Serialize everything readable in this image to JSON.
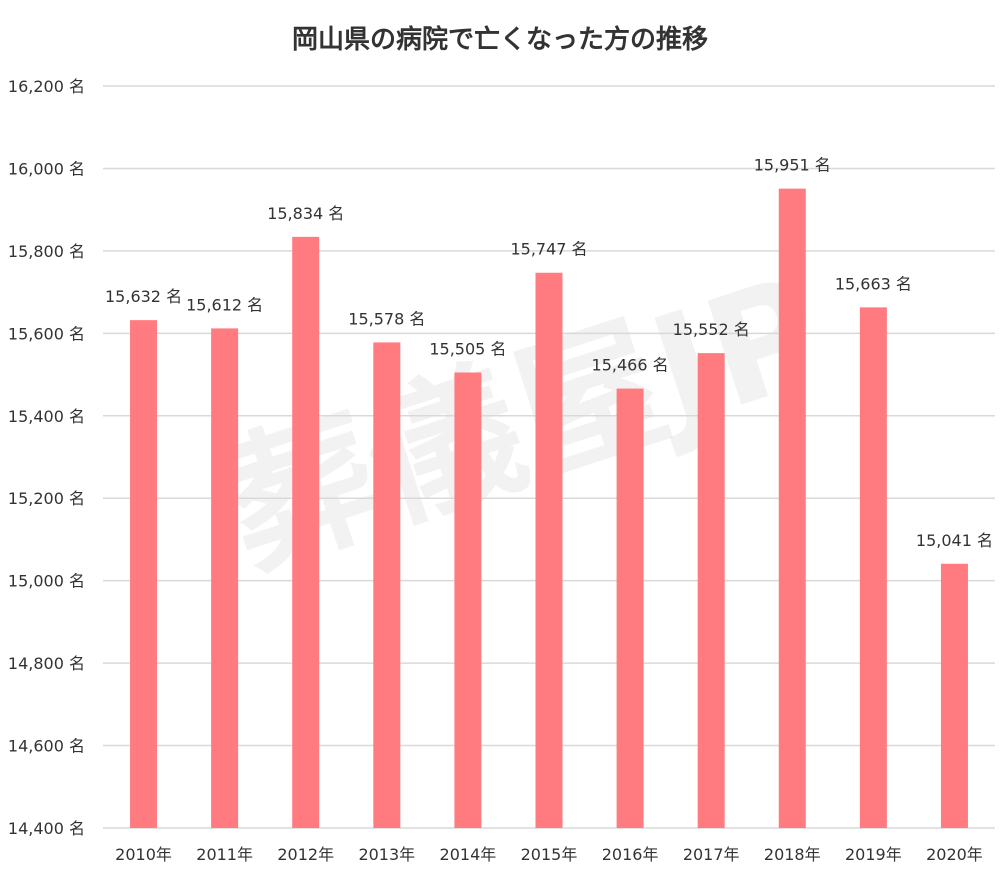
{
  "chart_data": {
    "type": "bar",
    "title": "岡山県の病院で亡くなった方の推移",
    "categories": [
      "2010年",
      "2011年",
      "2012年",
      "2013年",
      "2014年",
      "2015年",
      "2016年",
      "2017年",
      "2018年",
      "2019年",
      "2020年"
    ],
    "values": [
      15632,
      15612,
      15834,
      15578,
      15505,
      15747,
      15466,
      15552,
      15951,
      15663,
      15041
    ],
    "data_labels": [
      "15,632 名",
      "15,612 名",
      "15,834 名",
      "15,578 名",
      "15,505 名",
      "15,747 名",
      "15,466 名",
      "15,552 名",
      "15,951 名",
      "15,663 名",
      "15,041 名"
    ],
    "yticks": [
      14400,
      14600,
      14800,
      15000,
      15200,
      15400,
      15600,
      15800,
      16000,
      16200
    ],
    "ytick_labels": [
      "14,400 名",
      "14,600 名",
      "14,800 名",
      "15,000 名",
      "15,200 名",
      "15,400 名",
      "15,600 名",
      "15,800 名",
      "16,000 名",
      "16,200 名"
    ],
    "ylim": [
      14400,
      16200
    ],
    "xlabel": "",
    "ylabel": "",
    "grid": true,
    "bar_color": "#ff7b80",
    "grid_color": "#d9d9d9",
    "watermark": "葬儀屋JP"
  }
}
